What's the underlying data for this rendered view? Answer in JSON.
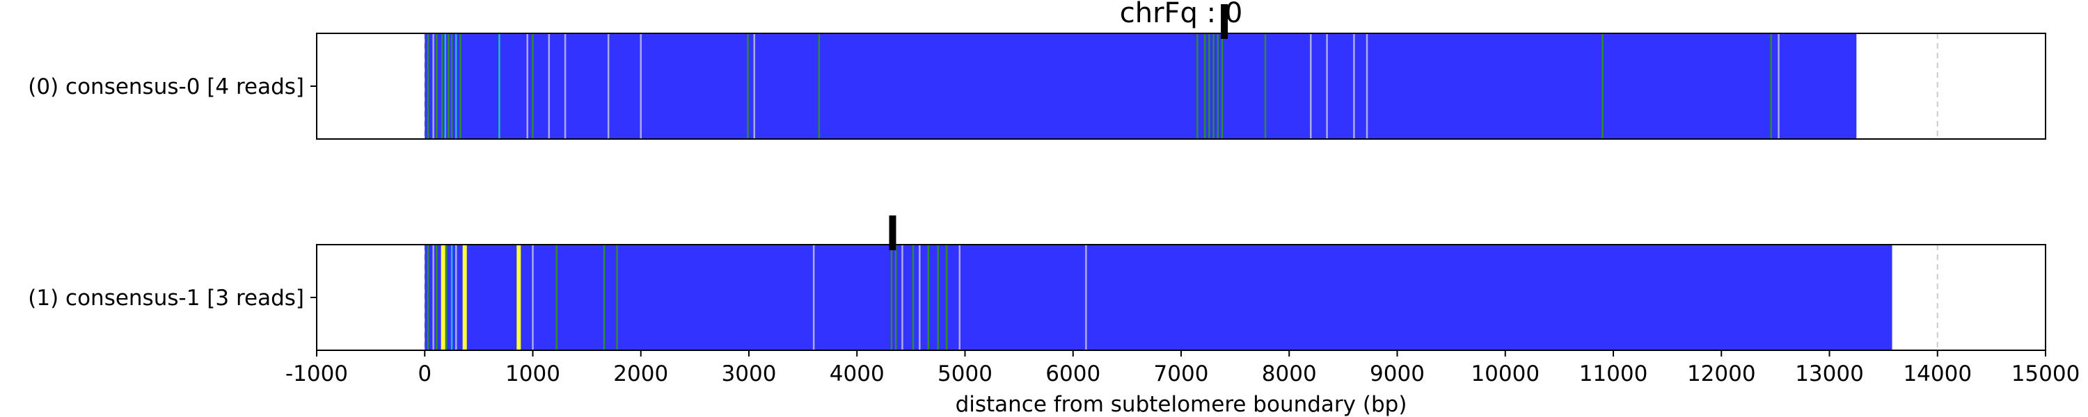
{
  "chart_data": {
    "type": "bar",
    "title": "chrFq : 0",
    "xlabel": "distance from subtelomere boundary (bp)",
    "ylabel": "",
    "xlim": [
      -1000,
      15000
    ],
    "xticks": [
      -1000,
      0,
      1000,
      2000,
      3000,
      4000,
      5000,
      6000,
      7000,
      8000,
      9000,
      10000,
      11000,
      12000,
      13000,
      14000,
      15000
    ],
    "xtick_labels": [
      "-1000",
      "0",
      "1000",
      "2000",
      "3000",
      "4000",
      "5000",
      "6000",
      "7000",
      "8000",
      "9000",
      "10000",
      "11000",
      "12000",
      "13000",
      "14000",
      "15000"
    ],
    "grid": "vertical dashed",
    "colors": {
      "bar": "#3333ff",
      "green": "#2e8b2e",
      "cyan": "#22bbbb",
      "yellow": "#ffff33",
      "white": "#dddddd",
      "grid": "#cccccc"
    },
    "tracks": [
      {
        "label": "(0) consensus-0 [4 reads]",
        "start": 0,
        "end": 13250,
        "marker": 7400,
        "bands": [
          {
            "x": 30,
            "color": "green"
          },
          {
            "x": 80,
            "color": "white"
          },
          {
            "x": 110,
            "color": "green"
          },
          {
            "x": 160,
            "color": "green"
          },
          {
            "x": 190,
            "color": "cyan"
          },
          {
            "x": 220,
            "color": "green"
          },
          {
            "x": 250,
            "color": "green"
          },
          {
            "x": 290,
            "color": "cyan"
          },
          {
            "x": 330,
            "color": "green"
          },
          {
            "x": 690,
            "color": "cyan"
          },
          {
            "x": 950,
            "color": "white"
          },
          {
            "x": 1000,
            "color": "green"
          },
          {
            "x": 1150,
            "color": "white"
          },
          {
            "x": 1300,
            "color": "white"
          },
          {
            "x": 1700,
            "color": "white"
          },
          {
            "x": 2000,
            "color": "white"
          },
          {
            "x": 2990,
            "color": "green"
          },
          {
            "x": 3050,
            "color": "white"
          },
          {
            "x": 3650,
            "color": "green"
          },
          {
            "x": 7150,
            "color": "green"
          },
          {
            "x": 7220,
            "color": "green"
          },
          {
            "x": 7260,
            "color": "green"
          },
          {
            "x": 7300,
            "color": "green"
          },
          {
            "x": 7340,
            "color": "green"
          },
          {
            "x": 7380,
            "color": "green"
          },
          {
            "x": 7780,
            "color": "green"
          },
          {
            "x": 8200,
            "color": "white"
          },
          {
            "x": 8350,
            "color": "white"
          },
          {
            "x": 8600,
            "color": "white"
          },
          {
            "x": 8720,
            "color": "white"
          },
          {
            "x": 10900,
            "color": "green"
          },
          {
            "x": 12460,
            "color": "green"
          },
          {
            "x": 12530,
            "color": "white"
          }
        ]
      },
      {
        "label": "(1) consensus-1 [3 reads]",
        "start": 0,
        "end": 13580,
        "marker": 4330,
        "bands": [
          {
            "x": 30,
            "color": "green"
          },
          {
            "x": 80,
            "color": "white"
          },
          {
            "x": 110,
            "color": "green"
          },
          {
            "x": 170,
            "color": "yellow"
          },
          {
            "x": 200,
            "color": "green"
          },
          {
            "x": 250,
            "color": "cyan"
          },
          {
            "x": 290,
            "color": "white"
          },
          {
            "x": 370,
            "color": "yellow"
          },
          {
            "x": 870,
            "color": "yellow"
          },
          {
            "x": 1000,
            "color": "white"
          },
          {
            "x": 1220,
            "color": "green"
          },
          {
            "x": 1660,
            "color": "green"
          },
          {
            "x": 1780,
            "color": "green"
          },
          {
            "x": 3600,
            "color": "white"
          },
          {
            "x": 4320,
            "color": "green"
          },
          {
            "x": 4360,
            "color": "green"
          },
          {
            "x": 4420,
            "color": "white"
          },
          {
            "x": 4520,
            "color": "green"
          },
          {
            "x": 4580,
            "color": "white"
          },
          {
            "x": 4660,
            "color": "green"
          },
          {
            "x": 4750,
            "color": "green"
          },
          {
            "x": 4830,
            "color": "green"
          },
          {
            "x": 4950,
            "color": "white"
          },
          {
            "x": 6120,
            "color": "white"
          }
        ]
      }
    ]
  }
}
